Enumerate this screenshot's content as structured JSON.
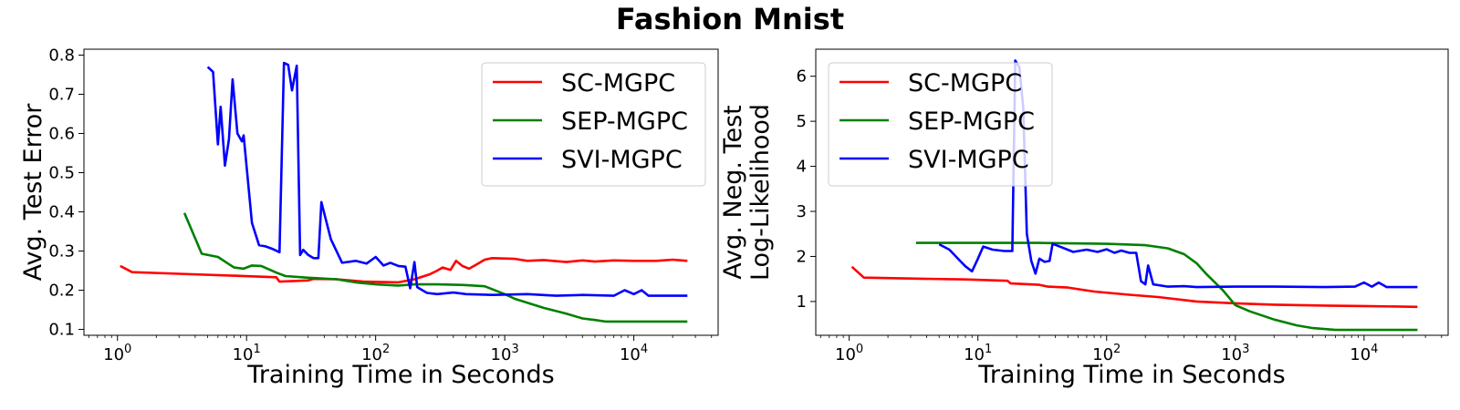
{
  "figure": {
    "title": "Fashion Mnist"
  },
  "chart_data": [
    {
      "type": "line",
      "xscale": "log",
      "xlim": [
        0.55,
        45000
      ],
      "ylim": [
        0.085,
        0.815
      ],
      "xlabel": "Training Time in Seconds",
      "ylabel": [
        "Avg. Test Error"
      ],
      "xticks": [
        {
          "value": 1,
          "base": "10",
          "exp": "0"
        },
        {
          "value": 10,
          "base": "10",
          "exp": "1"
        },
        {
          "value": 100,
          "base": "10",
          "exp": "2"
        },
        {
          "value": 1000,
          "base": "10",
          "exp": "3"
        },
        {
          "value": 10000,
          "base": "10",
          "exp": "4"
        }
      ],
      "yticks": [
        0.1,
        0.2,
        0.3,
        0.4,
        0.5,
        0.6,
        0.7,
        0.8
      ],
      "ytick_labels": [
        "0.1",
        "0.2",
        "0.3",
        "0.4",
        "0.5",
        "0.6",
        "0.7",
        "0.8"
      ],
      "legend_position": "top-right",
      "series": [
        {
          "name": "SC-MGPC",
          "color": "#ff0000",
          "points": [
            [
              1.05,
              0.262
            ],
            [
              1.3,
              0.246
            ],
            [
              3,
              0.242
            ],
            [
              8,
              0.237
            ],
            [
              17,
              0.233
            ],
            [
              18,
              0.222
            ],
            [
              30,
              0.225
            ],
            [
              33,
              0.229
            ],
            [
              50,
              0.228
            ],
            [
              80,
              0.222
            ],
            [
              150,
              0.22
            ],
            [
              200,
              0.228
            ],
            [
              260,
              0.24
            ],
            [
              300,
              0.25
            ],
            [
              330,
              0.258
            ],
            [
              380,
              0.252
            ],
            [
              420,
              0.275
            ],
            [
              470,
              0.262
            ],
            [
              530,
              0.255
            ],
            [
              600,
              0.265
            ],
            [
              700,
              0.278
            ],
            [
              800,
              0.282
            ],
            [
              1200,
              0.28
            ],
            [
              1500,
              0.275
            ],
            [
              2000,
              0.277
            ],
            [
              3000,
              0.272
            ],
            [
              4000,
              0.276
            ],
            [
              5000,
              0.273
            ],
            [
              7000,
              0.276
            ],
            [
              10000,
              0.275
            ],
            [
              15000,
              0.275
            ],
            [
              20000,
              0.278
            ],
            [
              26000,
              0.275
            ]
          ]
        },
        {
          "name": "SEP-MGPC",
          "color": "#008000",
          "points": [
            [
              3.3,
              0.397
            ],
            [
              4.5,
              0.293
            ],
            [
              6,
              0.285
            ],
            [
              8,
              0.258
            ],
            [
              9.5,
              0.255
            ],
            [
              11,
              0.263
            ],
            [
              13,
              0.262
            ],
            [
              17,
              0.245
            ],
            [
              20,
              0.236
            ],
            [
              30,
              0.232
            ],
            [
              50,
              0.228
            ],
            [
              70,
              0.22
            ],
            [
              100,
              0.215
            ],
            [
              150,
              0.212
            ],
            [
              200,
              0.215
            ],
            [
              300,
              0.215
            ],
            [
              500,
              0.213
            ],
            [
              700,
              0.21
            ],
            [
              1000,
              0.19
            ],
            [
              1200,
              0.178
            ],
            [
              2000,
              0.155
            ],
            [
              3000,
              0.14
            ],
            [
              4000,
              0.128
            ],
            [
              5000,
              0.124
            ],
            [
              6000,
              0.12
            ],
            [
              10000,
              0.12
            ],
            [
              26000,
              0.12
            ]
          ]
        },
        {
          "name": "SVI-MGPC",
          "color": "#0000ff",
          "points": [
            [
              5,
              0.77
            ],
            [
              5.5,
              0.757
            ],
            [
              6,
              0.572
            ],
            [
              6.3,
              0.668
            ],
            [
              6.8,
              0.518
            ],
            [
              7.3,
              0.585
            ],
            [
              7.8,
              0.738
            ],
            [
              8.5,
              0.6
            ],
            [
              9.2,
              0.58
            ],
            [
              9.5,
              0.595
            ],
            [
              11,
              0.372
            ],
            [
              12.5,
              0.315
            ],
            [
              14,
              0.312
            ],
            [
              16,
              0.305
            ],
            [
              18,
              0.297
            ],
            [
              19.5,
              0.78
            ],
            [
              21,
              0.775
            ],
            [
              22.5,
              0.71
            ],
            [
              24.5,
              0.773
            ],
            [
              26,
              0.29
            ],
            [
              27.5,
              0.303
            ],
            [
              30,
              0.29
            ],
            [
              33,
              0.282
            ],
            [
              36,
              0.282
            ],
            [
              38,
              0.425
            ],
            [
              45,
              0.33
            ],
            [
              55,
              0.27
            ],
            [
              70,
              0.275
            ],
            [
              85,
              0.268
            ],
            [
              100,
              0.285
            ],
            [
              115,
              0.263
            ],
            [
              130,
              0.27
            ],
            [
              150,
              0.262
            ],
            [
              170,
              0.26
            ],
            [
              185,
              0.205
            ],
            [
              200,
              0.272
            ],
            [
              210,
              0.208
            ],
            [
              230,
              0.2
            ],
            [
              250,
              0.193
            ],
            [
              300,
              0.19
            ],
            [
              400,
              0.194
            ],
            [
              500,
              0.19
            ],
            [
              800,
              0.188
            ],
            [
              1500,
              0.19
            ],
            [
              2500,
              0.186
            ],
            [
              4000,
              0.188
            ],
            [
              7000,
              0.186
            ],
            [
              8500,
              0.2
            ],
            [
              10000,
              0.19
            ],
            [
              11500,
              0.2
            ],
            [
              13000,
              0.186
            ],
            [
              26000,
              0.186
            ]
          ]
        }
      ]
    },
    {
      "type": "line",
      "xscale": "log",
      "xlim": [
        0.55,
        45000
      ],
      "ylim": [
        0.25,
        6.6
      ],
      "xlabel": "Training Time in Seconds",
      "ylabel": [
        "Avg. Neg. Test",
        "Log-Likelihood"
      ],
      "xticks": [
        {
          "value": 1,
          "base": "10",
          "exp": "0"
        },
        {
          "value": 10,
          "base": "10",
          "exp": "1"
        },
        {
          "value": 100,
          "base": "10",
          "exp": "2"
        },
        {
          "value": 1000,
          "base": "10",
          "exp": "3"
        },
        {
          "value": 10000,
          "base": "10",
          "exp": "4"
        }
      ],
      "yticks": [
        1,
        2,
        3,
        4,
        5,
        6
      ],
      "ytick_labels": [
        "1",
        "2",
        "3",
        "4",
        "5",
        "6"
      ],
      "legend_position": "top-left",
      "series": [
        {
          "name": "SC-MGPC",
          "color": "#ff0000",
          "points": [
            [
              1.05,
              1.77
            ],
            [
              1.3,
              1.53
            ],
            [
              3,
              1.51
            ],
            [
              8,
              1.49
            ],
            [
              17,
              1.46
            ],
            [
              18,
              1.4
            ],
            [
              30,
              1.37
            ],
            [
              35,
              1.33
            ],
            [
              50,
              1.31
            ],
            [
              80,
              1.22
            ],
            [
              150,
              1.15
            ],
            [
              250,
              1.1
            ],
            [
              500,
              1.0
            ],
            [
              1000,
              0.96
            ],
            [
              2000,
              0.93
            ],
            [
              5000,
              0.91
            ],
            [
              10000,
              0.9
            ],
            [
              26000,
              0.88
            ]
          ]
        },
        {
          "name": "SEP-MGPC",
          "color": "#008000",
          "points": [
            [
              3.3,
              2.3
            ],
            [
              10,
              2.3
            ],
            [
              30,
              2.3
            ],
            [
              100,
              2.28
            ],
            [
              200,
              2.25
            ],
            [
              300,
              2.18
            ],
            [
              400,
              2.05
            ],
            [
              500,
              1.85
            ],
            [
              600,
              1.6
            ],
            [
              800,
              1.25
            ],
            [
              1000,
              0.92
            ],
            [
              1300,
              0.78
            ],
            [
              2000,
              0.6
            ],
            [
              3000,
              0.47
            ],
            [
              4000,
              0.41
            ],
            [
              6000,
              0.37
            ],
            [
              10000,
              0.37
            ],
            [
              26000,
              0.37
            ]
          ]
        },
        {
          "name": "SVI-MGPC",
          "color": "#0000ff",
          "points": [
            [
              5,
              2.27
            ],
            [
              6,
              2.15
            ],
            [
              7,
              1.95
            ],
            [
              8,
              1.78
            ],
            [
              9,
              1.67
            ],
            [
              10,
              1.95
            ],
            [
              11,
              2.22
            ],
            [
              13,
              2.15
            ],
            [
              16,
              2.12
            ],
            [
              18.5,
              2.12
            ],
            [
              19.5,
              6.35
            ],
            [
              21,
              6.2
            ],
            [
              22.5,
              5.3
            ],
            [
              24,
              2.5
            ],
            [
              26,
              1.9
            ],
            [
              28,
              1.62
            ],
            [
              30,
              1.95
            ],
            [
              33,
              1.88
            ],
            [
              36,
              1.9
            ],
            [
              38,
              2.28
            ],
            [
              45,
              2.2
            ],
            [
              55,
              2.1
            ],
            [
              70,
              2.15
            ],
            [
              85,
              2.1
            ],
            [
              100,
              2.16
            ],
            [
              115,
              2.08
            ],
            [
              130,
              2.13
            ],
            [
              150,
              2.08
            ],
            [
              170,
              2.08
            ],
            [
              185,
              1.45
            ],
            [
              200,
              1.38
            ],
            [
              210,
              1.8
            ],
            [
              230,
              1.38
            ],
            [
              300,
              1.33
            ],
            [
              400,
              1.34
            ],
            [
              500,
              1.32
            ],
            [
              1000,
              1.33
            ],
            [
              2000,
              1.33
            ],
            [
              5000,
              1.32
            ],
            [
              8500,
              1.33
            ],
            [
              10000,
              1.42
            ],
            [
              11500,
              1.33
            ],
            [
              13000,
              1.42
            ],
            [
              15000,
              1.32
            ],
            [
              26000,
              1.32
            ]
          ]
        }
      ]
    }
  ]
}
